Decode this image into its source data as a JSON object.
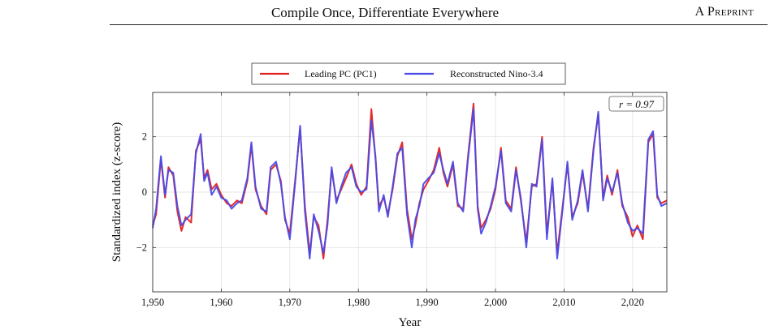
{
  "header": {
    "title": "Compile Once, Differentiate Everywhere",
    "label_prefix": "A",
    "label_rest": "Preprint"
  },
  "chart_data": {
    "type": "line",
    "title": "",
    "xlabel": "Year",
    "ylabel": "Standardized index (z-score)",
    "xlim": [
      1950,
      2025
    ],
    "ylim": [
      -3.6,
      3.6
    ],
    "xticks": [
      1950,
      1960,
      1970,
      1980,
      1990,
      2000,
      2010,
      2020
    ],
    "xtick_labels": [
      "1,950",
      "1,960",
      "1,970",
      "1,980",
      "1,990",
      "2,000",
      "2,010",
      "2,020"
    ],
    "yticks": [
      -2,
      0,
      2
    ],
    "ytick_labels": [
      "−2",
      "0",
      "2"
    ],
    "grid": true,
    "legend_position": "top-center",
    "annotation": "r = 0.97",
    "anchors_x": [
      1950,
      1950.5,
      1951.2,
      1951.8,
      1952.3,
      1953,
      1953.6,
      1954.2,
      1954.8,
      1955.6,
      1956.3,
      1957,
      1957.5,
      1958,
      1958.6,
      1959.3,
      1960,
      1960.8,
      1961.5,
      1962.3,
      1963,
      1963.8,
      1964.4,
      1965,
      1965.8,
      1966.6,
      1967.2,
      1968,
      1968.7,
      1969.3,
      1970,
      1970.8,
      1971.5,
      1972.2,
      1972.9,
      1973.5,
      1974.2,
      1974.9,
      1975.5,
      1976.1,
      1976.8,
      1977.5,
      1978.2,
      1979,
      1979.7,
      1980.4,
      1981.2,
      1981.9,
      1982.5,
      1983,
      1983.7,
      1984.3,
      1985,
      1985.7,
      1986.4,
      1987.1,
      1987.8,
      1988.3,
      1988.9,
      1989.5,
      1990.2,
      1991,
      1991.8,
      1992.4,
      1993,
      1993.8,
      1994.5,
      1995.3,
      1996,
      1996.8,
      1997.4,
      1997.9,
      1998.6,
      1999.3,
      2000,
      2000.8,
      2001.5,
      2002.3,
      2003,
      2003.7,
      2004.5,
      2005.3,
      2006,
      2006.8,
      2007.5,
      2008.3,
      2009,
      2009.8,
      2010.5,
      2011.2,
      2012,
      2012.7,
      2013.5,
      2014.3,
      2015,
      2015.7,
      2016.3,
      2017,
      2017.8,
      2018.5,
      2019.3,
      2020,
      2020.7,
      2021.5,
      2022.3,
      2023,
      2023.6,
      2024.2,
      2025
    ],
    "series": [
      {
        "name": "Leading PC (PC1)",
        "color": "#e02020",
        "values": [
          -1.2,
          -0.8,
          1.2,
          -0.2,
          0.9,
          0.6,
          -0.7,
          -1.4,
          -0.9,
          -1.1,
          1.5,
          1.9,
          0.5,
          0.8,
          0.1,
          0.3,
          -0.1,
          -0.4,
          -0.5,
          -0.3,
          -0.4,
          0.4,
          1.7,
          0.1,
          -0.5,
          -0.8,
          0.8,
          1.0,
          0.4,
          -1.0,
          -1.5,
          0.5,
          2.3,
          -0.5,
          -2.2,
          -0.9,
          -1.2,
          -2.4,
          -1.0,
          0.8,
          -0.3,
          0.1,
          0.5,
          1.0,
          0.3,
          -0.1,
          0.2,
          3.0,
          1.2,
          -0.5,
          -0.2,
          -0.8,
          0.1,
          1.3,
          1.8,
          -0.6,
          -1.7,
          -1.2,
          -0.4,
          0.1,
          0.4,
          0.8,
          1.6,
          0.7,
          0.2,
          1.0,
          -0.5,
          -0.6,
          1.3,
          3.2,
          -0.5,
          -1.3,
          -1.0,
          -0.6,
          0.1,
          1.6,
          -0.3,
          -0.6,
          0.9,
          -0.3,
          -1.8,
          0.2,
          0.3,
          2.0,
          -1.5,
          0.4,
          -2.2,
          -0.5,
          1.0,
          -0.9,
          -0.4,
          0.7,
          -0.6,
          1.6,
          2.8,
          -0.2,
          0.6,
          -0.1,
          0.8,
          -0.5,
          -0.9,
          -1.6,
          -1.2,
          -1.7,
          1.8,
          2.1,
          -0.2,
          -0.4,
          -0.3
        ]
      },
      {
        "name": "Reconstructed Nino-3.4",
        "color": "#4a4ae8",
        "values": [
          -1.3,
          -0.6,
          1.3,
          -0.1,
          0.8,
          0.7,
          -0.5,
          -1.2,
          -1.0,
          -0.8,
          1.4,
          2.1,
          0.4,
          0.7,
          -0.1,
          0.2,
          -0.2,
          -0.3,
          -0.6,
          -0.4,
          -0.3,
          0.5,
          1.8,
          0.2,
          -0.6,
          -0.7,
          0.9,
          1.1,
          0.3,
          -0.9,
          -1.7,
          0.4,
          2.4,
          -0.7,
          -2.4,
          -0.8,
          -1.4,
          -2.2,
          -1.2,
          0.9,
          -0.4,
          0.2,
          0.7,
          0.9,
          0.2,
          0.0,
          0.1,
          2.6,
          1.3,
          -0.7,
          -0.1,
          -0.9,
          0.2,
          1.4,
          1.6,
          -0.8,
          -2.0,
          -1.0,
          -0.5,
          0.3,
          0.5,
          0.7,
          1.4,
          0.8,
          0.3,
          1.1,
          -0.4,
          -0.7,
          1.2,
          3.0,
          -0.6,
          -1.5,
          -1.1,
          -0.5,
          0.2,
          1.5,
          -0.4,
          -0.7,
          0.8,
          -0.2,
          -2.0,
          0.3,
          0.2,
          1.9,
          -1.7,
          0.5,
          -2.4,
          -0.6,
          1.1,
          -1.0,
          -0.3,
          0.8,
          -0.7,
          1.5,
          2.9,
          -0.3,
          0.5,
          0.0,
          0.7,
          -0.4,
          -1.1,
          -1.4,
          -1.3,
          -1.5,
          1.9,
          2.2,
          -0.1,
          -0.5,
          -0.4
        ]
      }
    ]
  }
}
